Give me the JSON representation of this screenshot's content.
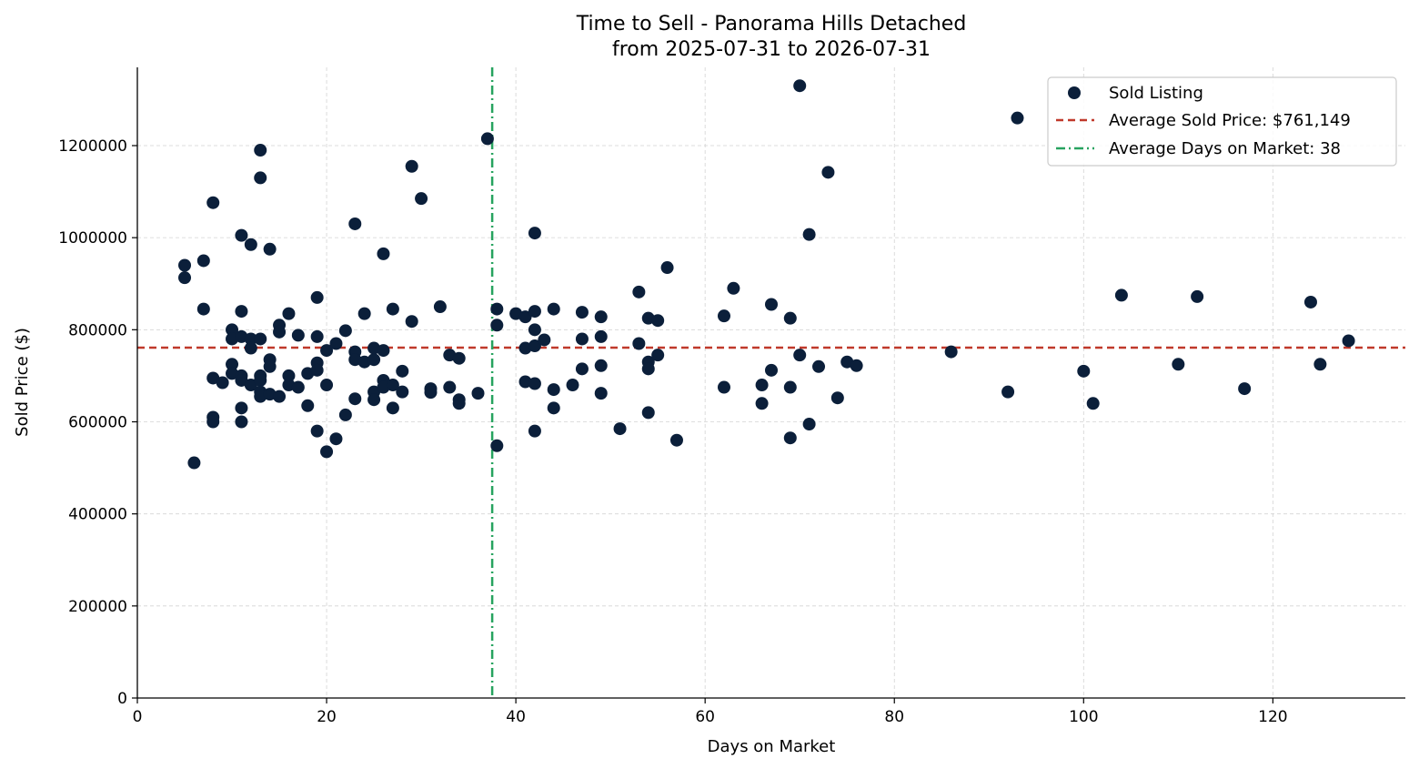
{
  "chart_data": {
    "type": "scatter",
    "title": "Time to Sell - Panorama Hills Detached",
    "subtitle": "from 2025-07-31 to 2026-07-31",
    "xlabel": "Days on Market",
    "ylabel": "Sold Price ($)",
    "xlim": [
      0,
      134
    ],
    "ylim": [
      0,
      1370000
    ],
    "x_ticks": [
      0,
      20,
      40,
      60,
      80,
      100,
      120
    ],
    "y_ticks": [
      0,
      200000,
      400000,
      600000,
      800000,
      1000000,
      1200000
    ],
    "x_tick_labels": [
      "0",
      "20",
      "40",
      "60",
      "80",
      "100",
      "120"
    ],
    "y_tick_labels": [
      "0",
      "200000",
      "400000",
      "600000",
      "800000",
      "1000000",
      "1200000"
    ],
    "grid": true,
    "legend_position": "top-right",
    "colors": {
      "points": "#0b1f3a",
      "avg_price": "#c0392b",
      "avg_days": "#27a35f",
      "grid": "#d3d3d3"
    },
    "reference_lines": {
      "avg_price": {
        "label": "Average Sold Price: $761,149",
        "y": 761149
      },
      "avg_days": {
        "label": "Average Days on Market: 38",
        "x": 37.5
      }
    },
    "series": [
      {
        "name": "Sold Listing",
        "points": [
          [
            5,
            940000
          ],
          [
            5,
            913000
          ],
          [
            6,
            511000
          ],
          [
            7,
            950000
          ],
          [
            7,
            845000
          ],
          [
            8,
            1076000
          ],
          [
            8,
            695000
          ],
          [
            8,
            610000
          ],
          [
            8,
            600000
          ],
          [
            9,
            685000
          ],
          [
            10,
            800000
          ],
          [
            10,
            780000
          ],
          [
            10,
            725000
          ],
          [
            10,
            705000
          ],
          [
            11,
            1005000
          ],
          [
            11,
            840000
          ],
          [
            11,
            785000
          ],
          [
            11,
            700000
          ],
          [
            11,
            690000
          ],
          [
            11,
            630000
          ],
          [
            11,
            600000
          ],
          [
            12,
            985000
          ],
          [
            12,
            780000
          ],
          [
            12,
            760000
          ],
          [
            12,
            680000
          ],
          [
            13,
            1190000
          ],
          [
            13,
            1130000
          ],
          [
            13,
            780000
          ],
          [
            13,
            700000
          ],
          [
            13,
            690000
          ],
          [
            13,
            665000
          ],
          [
            13,
            655000
          ],
          [
            14,
            975000
          ],
          [
            14,
            735000
          ],
          [
            14,
            720000
          ],
          [
            14,
            660000
          ],
          [
            15,
            810000
          ],
          [
            15,
            795000
          ],
          [
            15,
            655000
          ],
          [
            16,
            835000
          ],
          [
            16,
            700000
          ],
          [
            16,
            680000
          ],
          [
            17,
            788000
          ],
          [
            17,
            675000
          ],
          [
            18,
            705000
          ],
          [
            18,
            635000
          ],
          [
            19,
            870000
          ],
          [
            19,
            785000
          ],
          [
            19,
            728000
          ],
          [
            19,
            712000
          ],
          [
            19,
            580000
          ],
          [
            20,
            755000
          ],
          [
            20,
            680000
          ],
          [
            20,
            535000
          ],
          [
            21,
            770000
          ],
          [
            21,
            563000
          ],
          [
            22,
            798000
          ],
          [
            22,
            615000
          ],
          [
            23,
            1030000
          ],
          [
            23,
            752000
          ],
          [
            23,
            735000
          ],
          [
            23,
            650000
          ],
          [
            24,
            835000
          ],
          [
            24,
            730000
          ],
          [
            25,
            760000
          ],
          [
            25,
            735000
          ],
          [
            25,
            665000
          ],
          [
            25,
            648000
          ],
          [
            26,
            965000
          ],
          [
            26,
            755000
          ],
          [
            26,
            690000
          ],
          [
            26,
            675000
          ],
          [
            27,
            845000
          ],
          [
            27,
            680000
          ],
          [
            27,
            630000
          ],
          [
            28,
            710000
          ],
          [
            28,
            665000
          ],
          [
            29,
            1155000
          ],
          [
            29,
            818000
          ],
          [
            30,
            1085000
          ],
          [
            31,
            672000
          ],
          [
            31,
            664000
          ],
          [
            32,
            850000
          ],
          [
            33,
            745000
          ],
          [
            33,
            675000
          ],
          [
            34,
            738000
          ],
          [
            34,
            648000
          ],
          [
            34,
            640000
          ],
          [
            36,
            662000
          ],
          [
            37,
            1215000
          ],
          [
            38,
            845000
          ],
          [
            38,
            810000
          ],
          [
            38,
            548000
          ],
          [
            40,
            835000
          ],
          [
            41,
            828000
          ],
          [
            41,
            760000
          ],
          [
            41,
            687000
          ],
          [
            42,
            1010000
          ],
          [
            42,
            840000
          ],
          [
            42,
            800000
          ],
          [
            42,
            765000
          ],
          [
            42,
            683000
          ],
          [
            42,
            580000
          ],
          [
            43,
            778000
          ],
          [
            44,
            845000
          ],
          [
            44,
            670000
          ],
          [
            44,
            630000
          ],
          [
            46,
            680000
          ],
          [
            47,
            838000
          ],
          [
            47,
            780000
          ],
          [
            47,
            715000
          ],
          [
            49,
            828000
          ],
          [
            49,
            785000
          ],
          [
            49,
            722000
          ],
          [
            49,
            662000
          ],
          [
            51,
            585000
          ],
          [
            53,
            882000
          ],
          [
            53,
            770000
          ],
          [
            54,
            825000
          ],
          [
            54,
            730000
          ],
          [
            54,
            715000
          ],
          [
            54,
            620000
          ],
          [
            55,
            820000
          ],
          [
            55,
            745000
          ],
          [
            56,
            935000
          ],
          [
            57,
            560000
          ],
          [
            62,
            830000
          ],
          [
            62,
            675000
          ],
          [
            63,
            890000
          ],
          [
            66,
            680000
          ],
          [
            66,
            640000
          ],
          [
            67,
            855000
          ],
          [
            67,
            712000
          ],
          [
            69,
            825000
          ],
          [
            69,
            675000
          ],
          [
            69,
            565000
          ],
          [
            70,
            1330000
          ],
          [
            70,
            745000
          ],
          [
            71,
            1007000
          ],
          [
            71,
            595000
          ],
          [
            72,
            720000
          ],
          [
            73,
            1142000
          ],
          [
            74,
            652000
          ],
          [
            75,
            730000
          ],
          [
            76,
            722000
          ],
          [
            86,
            752000
          ],
          [
            92,
            665000
          ],
          [
            93,
            1260000
          ],
          [
            100,
            710000
          ],
          [
            101,
            640000
          ],
          [
            104,
            875000
          ],
          [
            110,
            725000
          ],
          [
            112,
            872000
          ],
          [
            117,
            672000
          ],
          [
            124,
            860000
          ],
          [
            125,
            725000
          ],
          [
            128,
            776000
          ]
        ]
      }
    ]
  }
}
